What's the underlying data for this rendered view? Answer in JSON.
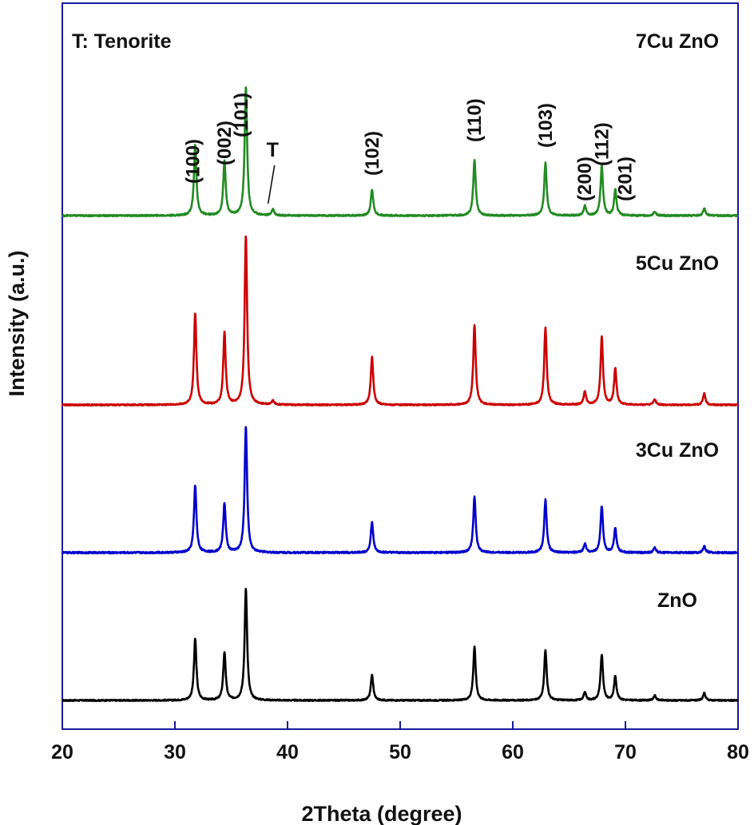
{
  "chart_data": {
    "type": "line",
    "title": "",
    "xlabel": "2Theta (degree)",
    "ylabel": "Intensity (a.u.)",
    "xlim": [
      20,
      80
    ],
    "x_ticks": [
      "20",
      "30",
      "40",
      "50",
      "60",
      "70",
      "80"
    ],
    "y_ticks": [],
    "grid": false,
    "annotation_note": "T: Tenorite",
    "series": [
      {
        "name": "ZnO",
        "color": "#000000",
        "baseline": 0,
        "noise": 0.8,
        "peaks": [
          {
            "x": 31.8,
            "h": 77
          },
          {
            "x": 34.4,
            "h": 60
          },
          {
            "x": 36.3,
            "h": 140
          },
          {
            "x": 47.5,
            "h": 32
          },
          {
            "x": 56.6,
            "h": 67
          },
          {
            "x": 62.9,
            "h": 63
          },
          {
            "x": 66.4,
            "h": 10
          },
          {
            "x": 67.9,
            "h": 57
          },
          {
            "x": 69.1,
            "h": 30
          },
          {
            "x": 72.6,
            "h": 6
          },
          {
            "x": 77.0,
            "h": 9
          }
        ]
      },
      {
        "name": "3Cu ZnO",
        "color": "#0000cc",
        "baseline": 185,
        "noise": 1.0,
        "peaks": [
          {
            "x": 31.8,
            "h": 84
          },
          {
            "x": 34.4,
            "h": 62
          },
          {
            "x": 36.3,
            "h": 158
          },
          {
            "x": 47.5,
            "h": 38
          },
          {
            "x": 56.6,
            "h": 70
          },
          {
            "x": 62.9,
            "h": 66
          },
          {
            "x": 66.4,
            "h": 11
          },
          {
            "x": 67.9,
            "h": 58
          },
          {
            "x": 69.1,
            "h": 30
          },
          {
            "x": 72.6,
            "h": 6
          },
          {
            "x": 77.0,
            "h": 8
          }
        ]
      },
      {
        "name": "5Cu ZnO",
        "color": "#cc0000",
        "baseline": 370,
        "noise": 0.8,
        "peaks": [
          {
            "x": 31.8,
            "h": 115
          },
          {
            "x": 34.4,
            "h": 90
          },
          {
            "x": 36.3,
            "h": 212
          },
          {
            "x": 38.7,
            "h": 5
          },
          {
            "x": 47.5,
            "h": 60
          },
          {
            "x": 56.6,
            "h": 100
          },
          {
            "x": 62.9,
            "h": 97
          },
          {
            "x": 66.4,
            "h": 16
          },
          {
            "x": 67.9,
            "h": 85
          },
          {
            "x": 69.1,
            "h": 45
          },
          {
            "x": 72.6,
            "h": 7
          },
          {
            "x": 77.0,
            "h": 14
          }
        ]
      },
      {
        "name": "7Cu ZnO",
        "color": "#228b22",
        "baseline": 607,
        "noise": 0.9,
        "peaks": [
          {
            "x": 31.8,
            "h": 88
          },
          {
            "x": 34.4,
            "h": 68
          },
          {
            "x": 36.3,
            "h": 162
          },
          {
            "x": 38.7,
            "h": 8
          },
          {
            "x": 47.5,
            "h": 33
          },
          {
            "x": 56.6,
            "h": 70
          },
          {
            "x": 62.9,
            "h": 66
          },
          {
            "x": 66.4,
            "h": 12
          },
          {
            "x": 67.9,
            "h": 62
          },
          {
            "x": 69.1,
            "h": 32
          },
          {
            "x": 72.6,
            "h": 5
          },
          {
            "x": 77.0,
            "h": 9
          }
        ]
      }
    ],
    "annotations": [
      {
        "text": "(100)",
        "x": 31.8
      },
      {
        "text": "(002)",
        "x": 34.4
      },
      {
        "text": "(101)",
        "x": 36.3
      },
      {
        "text": "T",
        "x": 38.7
      },
      {
        "text": "(102)",
        "x": 47.5
      },
      {
        "text": "(110)",
        "x": 56.6
      },
      {
        "text": "(103)",
        "x": 62.9
      },
      {
        "text": "(200)",
        "x": 66.4
      },
      {
        "text": "(112)",
        "x": 67.9
      },
      {
        "text": "(201)",
        "x": 69.1
      }
    ]
  }
}
